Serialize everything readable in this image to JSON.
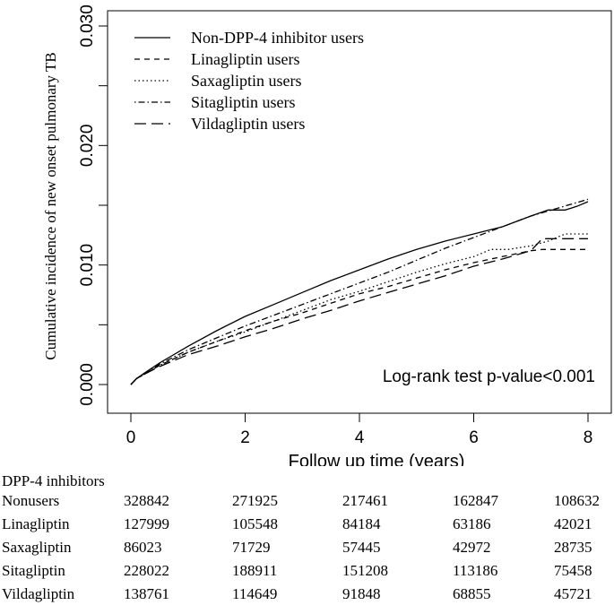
{
  "chart_data": {
    "type": "line",
    "title": "",
    "xlabel": "Follow up time (years)",
    "ylabel": "Cumulative incidence of new onset pulmonary TB",
    "xlim": [
      0,
      8
    ],
    "ylim": [
      0,
      0.03
    ],
    "xticks": [
      "0",
      "2",
      "4",
      "6",
      "8"
    ],
    "yticks": [
      "0.000",
      "0.010",
      "0.020",
      "0.030"
    ],
    "legend_position": "top-left",
    "annotation": "Log-rank test p-value<0.001",
    "series": [
      {
        "name": "Non-DPP-4 inhibitor users",
        "dash": "solid",
        "x": [
          0,
          0.1,
          0.25,
          0.5,
          1,
          1.5,
          2,
          2.5,
          3,
          3.5,
          4,
          4.5,
          5,
          5.5,
          6,
          6.5,
          7,
          7.3,
          7.6,
          7.8,
          8
        ],
        "y": [
          0,
          0.0005,
          0.001,
          0.0018,
          0.0032,
          0.0045,
          0.0057,
          0.0067,
          0.0077,
          0.0087,
          0.0096,
          0.0105,
          0.0113,
          0.012,
          0.0126,
          0.0132,
          0.0141,
          0.0146,
          0.0146,
          0.0149,
          0.0153
        ]
      },
      {
        "name": "Linagliptin users",
        "dash": "dashed",
        "x": [
          0,
          0.1,
          0.25,
          0.5,
          1,
          1.5,
          2,
          2.5,
          3,
          3.5,
          4,
          4.5,
          5,
          5.5,
          6,
          6.5,
          7,
          7.2,
          7.5,
          8
        ],
        "y": [
          0,
          0.0005,
          0.0009,
          0.0016,
          0.0027,
          0.0036,
          0.0045,
          0.0053,
          0.006,
          0.0068,
          0.0076,
          0.0082,
          0.0089,
          0.0096,
          0.0102,
          0.0107,
          0.0112,
          0.0113,
          0.0113,
          0.0113
        ]
      },
      {
        "name": "Saxagliptin users",
        "dash": "dotted",
        "x": [
          0,
          0.1,
          0.25,
          0.5,
          1,
          1.5,
          2,
          2.5,
          3,
          3.5,
          4,
          4.5,
          5,
          5.5,
          6,
          6.3,
          6.6,
          7,
          7.3,
          7.6,
          8
        ],
        "y": [
          0,
          0.0005,
          0.0009,
          0.0016,
          0.0027,
          0.0036,
          0.0044,
          0.0053,
          0.0062,
          0.0071,
          0.0078,
          0.0086,
          0.0094,
          0.0101,
          0.0107,
          0.0113,
          0.0113,
          0.0116,
          0.012,
          0.0126,
          0.0126
        ]
      },
      {
        "name": "Sitagliptin users",
        "dash": "dotdash",
        "x": [
          0,
          0.1,
          0.25,
          0.5,
          1,
          1.5,
          2,
          2.5,
          3,
          3.5,
          4,
          4.5,
          5,
          5.5,
          6,
          6.5,
          7,
          7.5,
          8
        ],
        "y": [
          0,
          0.0005,
          0.0009,
          0.0017,
          0.0029,
          0.0039,
          0.0049,
          0.0058,
          0.0067,
          0.0076,
          0.0085,
          0.0094,
          0.0104,
          0.0114,
          0.0123,
          0.0132,
          0.0141,
          0.0148,
          0.0155
        ]
      },
      {
        "name": "Vildagliptin users",
        "dash": "longdash",
        "x": [
          0,
          0.1,
          0.25,
          0.5,
          1,
          1.5,
          2,
          2.5,
          3,
          3.5,
          4,
          4.5,
          5,
          5.5,
          6,
          6.5,
          7,
          7.2,
          7.5,
          8
        ],
        "y": [
          0,
          0.0005,
          0.0009,
          0.0015,
          0.0025,
          0.0032,
          0.004,
          0.0047,
          0.0055,
          0.0062,
          0.007,
          0.0077,
          0.0084,
          0.0091,
          0.0099,
          0.0105,
          0.0112,
          0.0122,
          0.0122,
          0.0122
        ]
      }
    ]
  },
  "risk_table": {
    "title": "DPP-4 inhibitors",
    "rows": [
      {
        "label": "Nonusers",
        "values": [
          "328842",
          "271925",
          "217461",
          "162847",
          "108632"
        ]
      },
      {
        "label": "Linagliptin",
        "values": [
          "127999",
          "105548",
          "84184",
          "63186",
          "42021"
        ]
      },
      {
        "label": "Saxagliptin",
        "values": [
          "86023",
          "71729",
          "57445",
          "42972",
          "28735"
        ]
      },
      {
        "label": "Sitagliptin",
        "values": [
          "228022",
          "188911",
          "151208",
          "113186",
          "75458"
        ]
      },
      {
        "label": "Vildagliptin",
        "values": [
          "138761",
          "114649",
          "91848",
          "68855",
          "45721"
        ]
      }
    ]
  }
}
